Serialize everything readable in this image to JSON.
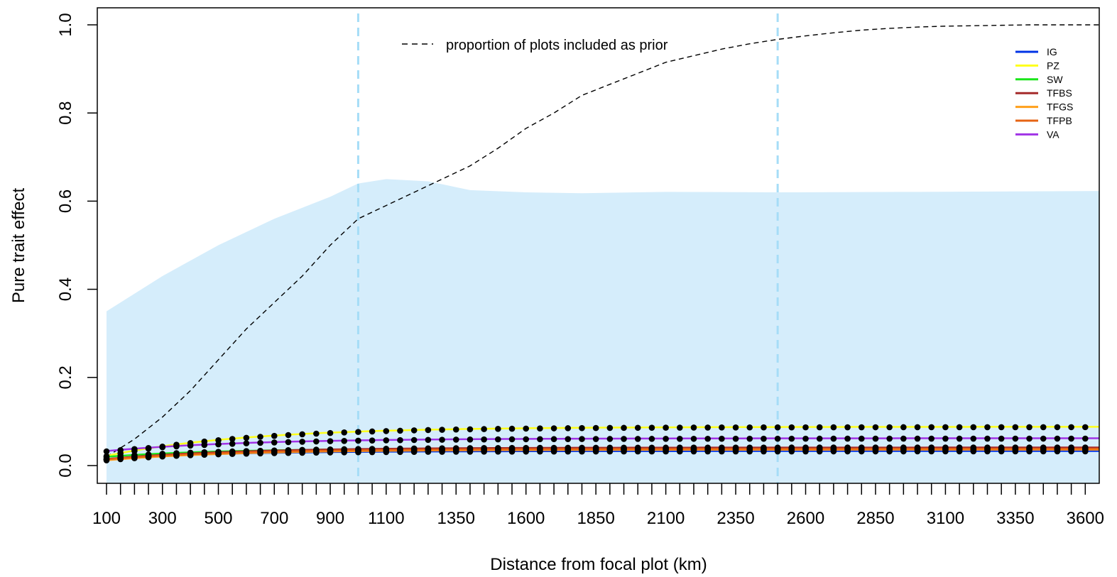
{
  "chart_data": {
    "type": "line",
    "xlabel": "Distance from focal plot (km)",
    "ylabel": "Pure trait effect",
    "xlim": [
      100,
      3650
    ],
    "ylim": [
      0.0,
      1.0
    ],
    "x_tick_labels": [
      100,
      300,
      500,
      700,
      900,
      1100,
      1350,
      1600,
      1850,
      2100,
      2350,
      2600,
      2850,
      3100,
      3350,
      3600
    ],
    "y_tick_labels": [
      "0.0",
      "0.2",
      "0.4",
      "0.6",
      "0.8",
      "1.0"
    ],
    "minor_x_step": 50,
    "vlines": [
      1000,
      2500
    ],
    "vline_color": "#A6DDF7",
    "band_color": "#D5EDFB",
    "band": {
      "x": [
        100,
        300,
        500,
        700,
        900,
        1000,
        1100,
        1250,
        1400,
        1600,
        1800,
        2100,
        2500,
        3000,
        3650
      ],
      "y": [
        0.35,
        0.43,
        0.5,
        0.56,
        0.61,
        0.64,
        0.65,
        0.645,
        0.625,
        0.62,
        0.618,
        0.621,
        0.62,
        0.621,
        0.623
      ]
    },
    "prior_curve": {
      "name": "proportion of plots included as prior",
      "color": "#000000",
      "x": [
        100,
        200,
        300,
        400,
        500,
        600,
        700,
        800,
        900,
        1000,
        1100,
        1200,
        1300,
        1400,
        1500,
        1600,
        1700,
        1800,
        1900,
        2000,
        2100,
        2200,
        2300,
        2400,
        2500,
        2600,
        2700,
        2800,
        2900,
        3000,
        3100,
        3200,
        3300,
        3400,
        3500,
        3650
      ],
      "y": [
        0.02,
        0.06,
        0.11,
        0.17,
        0.24,
        0.31,
        0.37,
        0.43,
        0.5,
        0.56,
        0.59,
        0.62,
        0.65,
        0.68,
        0.72,
        0.765,
        0.8,
        0.84,
        0.865,
        0.89,
        0.915,
        0.93,
        0.945,
        0.957,
        0.967,
        0.975,
        0.982,
        0.988,
        0.992,
        0.995,
        0.997,
        0.998,
        0.999,
        1.0,
        1.0,
        1.0
      ]
    },
    "series": [
      {
        "name": "IG",
        "color": "#0033E6",
        "start": 0.015,
        "plateau": 0.033,
        "scale": 400
      },
      {
        "name": "PZ",
        "color": "#FFFF1A",
        "start": 0.022,
        "plateau": 0.088,
        "scale": 500
      },
      {
        "name": "SW",
        "color": "#1AE61A",
        "start": 0.02,
        "plateau": 0.039,
        "scale": 400
      },
      {
        "name": "TFBS",
        "color": "#A52A2A",
        "start": 0.015,
        "plateau": 0.041,
        "scale": 450
      },
      {
        "name": "TFGS",
        "color": "#FF9F1A",
        "start": 0.012,
        "plateau": 0.036,
        "scale": 450
      },
      {
        "name": "TFPB",
        "color": "#E66414",
        "start": 0.014,
        "plateau": 0.038,
        "scale": 450
      },
      {
        "name": "VA",
        "color": "#A033E6",
        "start": 0.033,
        "plateau": 0.062,
        "scale": 500
      }
    ],
    "legend_position": "top-right",
    "grid": false
  }
}
